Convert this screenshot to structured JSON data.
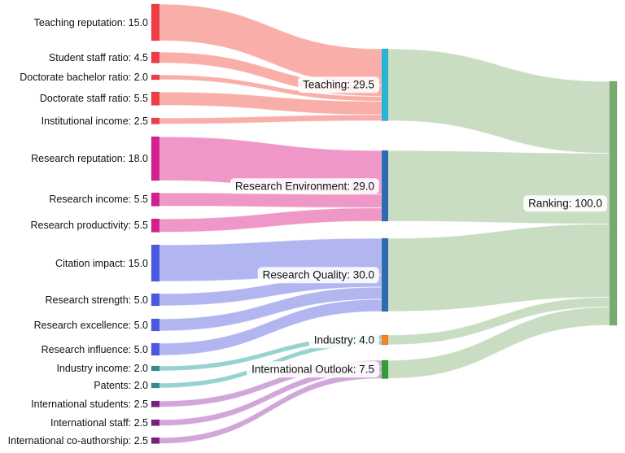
{
  "chart_data": {
    "type": "sankey",
    "title": "",
    "legend": "none",
    "nodes": [
      {
        "id": "teaching-reputation",
        "label": "Teaching reputation: 15.0",
        "value": 15.0,
        "column": 0,
        "color": "#f13c44"
      },
      {
        "id": "student-staff-ratio",
        "label": "Student staff ratio: 4.5",
        "value": 4.5,
        "column": 0,
        "color": "#f13c44"
      },
      {
        "id": "doctorate-bachelor-ratio",
        "label": "Doctorate bachelor ratio: 2.0",
        "value": 2.0,
        "column": 0,
        "color": "#f13c44"
      },
      {
        "id": "doctorate-staff-ratio",
        "label": "Doctorate staff ratio: 5.5",
        "value": 5.5,
        "column": 0,
        "color": "#f13c44"
      },
      {
        "id": "institutional-income",
        "label": "Institutional income: 2.5",
        "value": 2.5,
        "column": 0,
        "color": "#f13c44"
      },
      {
        "id": "research-reputation",
        "label": "Research reputation: 18.0",
        "value": 18.0,
        "column": 0,
        "color": "#d4208f"
      },
      {
        "id": "research-income",
        "label": "Research income: 5.5",
        "value": 5.5,
        "column": 0,
        "color": "#d4208f"
      },
      {
        "id": "research-productivity",
        "label": "Research productivity: 5.5",
        "value": 5.5,
        "column": 0,
        "color": "#d4208f"
      },
      {
        "id": "citation-impact",
        "label": "Citation impact: 15.0",
        "value": 15.0,
        "column": 0,
        "color": "#4959e4"
      },
      {
        "id": "research-strength",
        "label": "Research strength: 5.0",
        "value": 5.0,
        "column": 0,
        "color": "#4959e4"
      },
      {
        "id": "research-excellence",
        "label": "Research excellence: 5.0",
        "value": 5.0,
        "column": 0,
        "color": "#4959e4"
      },
      {
        "id": "research-influence",
        "label": "Research influence: 5.0",
        "value": 5.0,
        "column": 0,
        "color": "#4959e4"
      },
      {
        "id": "industry-income",
        "label": "Industry income: 2.0",
        "value": 2.0,
        "column": 0,
        "color": "#2f8f8c"
      },
      {
        "id": "patents",
        "label": "Patents: 2.0",
        "value": 2.0,
        "column": 0,
        "color": "#2f8f8c"
      },
      {
        "id": "international-students",
        "label": "International students: 2.5",
        "value": 2.5,
        "column": 0,
        "color": "#7b1e7e"
      },
      {
        "id": "international-staff",
        "label": "International staff: 2.5",
        "value": 2.5,
        "column": 0,
        "color": "#7b1e7e"
      },
      {
        "id": "international-co-authorship",
        "label": "International co-authorship: 2.5",
        "value": 2.5,
        "column": 0,
        "color": "#7b1e7e"
      },
      {
        "id": "teaching",
        "label": "Teaching: 29.5",
        "value": 29.5,
        "column": 1,
        "color": "#27b5d6"
      },
      {
        "id": "research-environment",
        "label": "Research Environment: 29.0",
        "value": 29.0,
        "column": 1,
        "color": "#2b6cb5"
      },
      {
        "id": "research-quality",
        "label": "Research Quality: 30.0",
        "value": 30.0,
        "column": 1,
        "color": "#2b6cb5"
      },
      {
        "id": "industry",
        "label": "Industry: 4.0",
        "value": 4.0,
        "column": 1,
        "color": "#f68220"
      },
      {
        "id": "international-outlook",
        "label": "International Outlook: 7.5",
        "value": 7.5,
        "column": 1,
        "color": "#2f9e33"
      },
      {
        "id": "ranking",
        "label": "Ranking: 100.0",
        "value": 100.0,
        "column": 2,
        "color": "#78ab6f"
      }
    ],
    "links": [
      {
        "source": 0,
        "target": 17,
        "value": 15.0,
        "color": "#f9a8a2"
      },
      {
        "source": 1,
        "target": 17,
        "value": 4.5,
        "color": "#f9a8a2"
      },
      {
        "source": 2,
        "target": 17,
        "value": 2.0,
        "color": "#f9a8a2"
      },
      {
        "source": 3,
        "target": 17,
        "value": 5.5,
        "color": "#f9a8a2"
      },
      {
        "source": 4,
        "target": 17,
        "value": 2.5,
        "color": "#f9a8a2"
      },
      {
        "source": 5,
        "target": 18,
        "value": 18.0,
        "color": "#ee90c3"
      },
      {
        "source": 6,
        "target": 18,
        "value": 5.5,
        "color": "#ee90c3"
      },
      {
        "source": 7,
        "target": 18,
        "value": 5.5,
        "color": "#ee90c3"
      },
      {
        "source": 8,
        "target": 19,
        "value": 15.0,
        "color": "#abb0ef"
      },
      {
        "source": 9,
        "target": 19,
        "value": 5.0,
        "color": "#abb0ef"
      },
      {
        "source": 10,
        "target": 19,
        "value": 5.0,
        "color": "#abb0ef"
      },
      {
        "source": 11,
        "target": 19,
        "value": 5.0,
        "color": "#abb0ef"
      },
      {
        "source": 12,
        "target": 20,
        "value": 2.0,
        "color": "#8ecfcb"
      },
      {
        "source": 13,
        "target": 20,
        "value": 2.0,
        "color": "#8ecfcb"
      },
      {
        "source": 14,
        "target": 21,
        "value": 2.5,
        "color": "#cd9fd5"
      },
      {
        "source": 15,
        "target": 21,
        "value": 2.5,
        "color": "#cd9fd5"
      },
      {
        "source": 16,
        "target": 21,
        "value": 2.5,
        "color": "#cd9fd5"
      },
      {
        "source": 17,
        "target": 22,
        "value": 29.5,
        "color": "#c5dabe"
      },
      {
        "source": 18,
        "target": 22,
        "value": 29.0,
        "color": "#c5dabe"
      },
      {
        "source": 19,
        "target": 22,
        "value": 30.0,
        "color": "#c5dabe"
      },
      {
        "source": 20,
        "target": 22,
        "value": 4.0,
        "color": "#c5dabe"
      },
      {
        "source": 21,
        "target": 22,
        "value": 7.5,
        "color": "#c5dabe"
      }
    ]
  }
}
